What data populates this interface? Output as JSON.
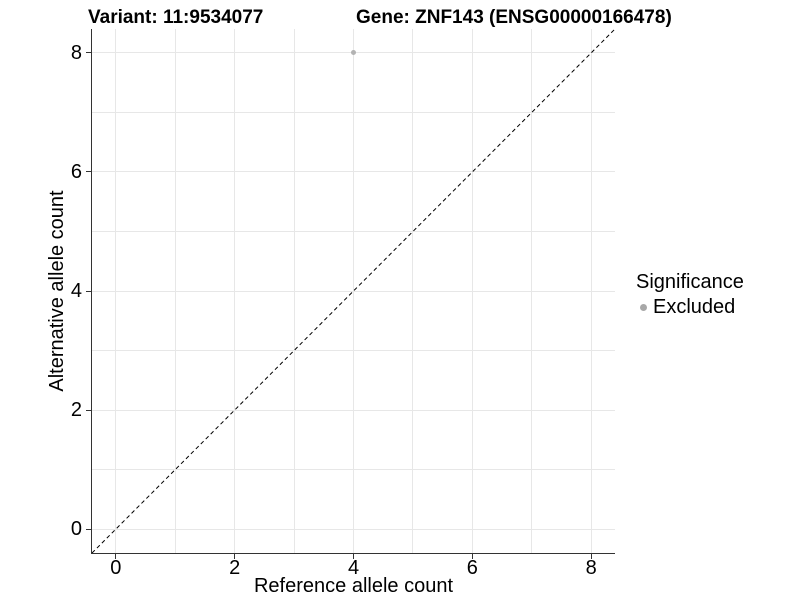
{
  "figure": {
    "title_variant": "Variant: 11:9534077",
    "title_gene": "Gene: ZNF143 (ENSG00000166478)"
  },
  "chart_data": {
    "type": "scatter",
    "title": "Variant: 11:9534077   Gene: ZNF143 (ENSG00000166478)",
    "xlabel": "Reference allele count",
    "ylabel": "Alternative allele count",
    "xlim": [
      -0.4,
      8.4
    ],
    "ylim": [
      -0.4,
      8.4
    ],
    "x_breaks": [
      0,
      2,
      4,
      6,
      8
    ],
    "y_breaks": [
      0,
      2,
      4,
      6,
      8
    ],
    "x_grid": [
      0,
      1,
      2,
      3,
      4,
      5,
      6,
      7,
      8
    ],
    "y_grid": [
      0,
      1,
      2,
      3,
      4,
      5,
      6,
      7,
      8
    ],
    "grid": "on",
    "legend_position": "right",
    "points": [
      {
        "x": 4,
        "y": 8,
        "significance": "Excluded"
      }
    ],
    "identity_line": {
      "style": "dashed",
      "from": [
        -0.4,
        -0.4
      ],
      "to": [
        8.4,
        8.4
      ]
    },
    "legend": {
      "title": "Significance",
      "entries": [
        {
          "label": "Excluded",
          "marker": "circle",
          "color": "#a8a8a8"
        }
      ]
    }
  },
  "colors": {
    "background": "#ffffff",
    "point": "#b3b3b3",
    "legend_marker": "#a8a8a8",
    "grid": "#e7e7e7",
    "axis_line": "#333333",
    "tick": "#333333",
    "text": "#000000",
    "identity_line": "#000000"
  }
}
